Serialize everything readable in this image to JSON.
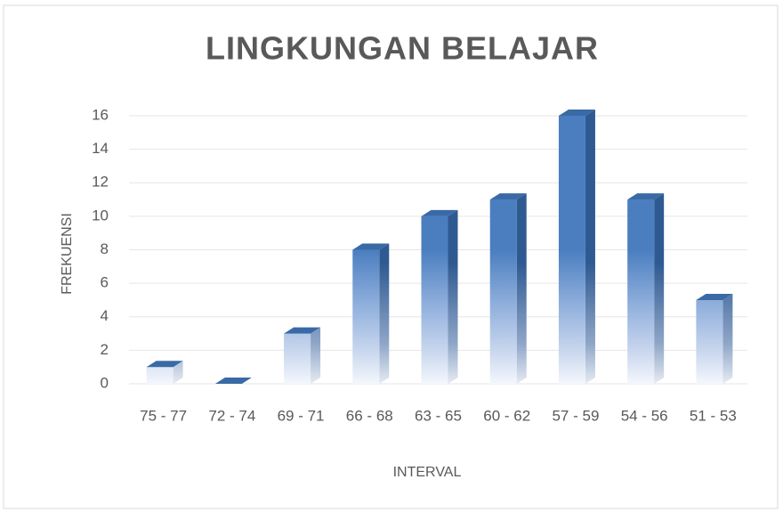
{
  "chart_data": {
    "type": "bar3d",
    "title": "LINGKUNGAN BELAJAR",
    "x_label": "INTERVAL",
    "y_label": "FREKUENSI",
    "categories": [
      "75 - 77",
      "72 - 74",
      "69 - 71",
      "66 - 68",
      "63 - 65",
      "60 - 62",
      "57 - 59",
      "54 - 56",
      "51 - 53"
    ],
    "values": [
      1,
      0,
      3,
      8,
      10,
      11,
      16,
      11,
      5
    ],
    "color": "#4a7ebf",
    "ylim": [
      0,
      16
    ],
    "yticks": [
      0,
      2,
      4,
      6,
      8,
      10,
      12,
      14,
      16
    ],
    "grid": true
  }
}
